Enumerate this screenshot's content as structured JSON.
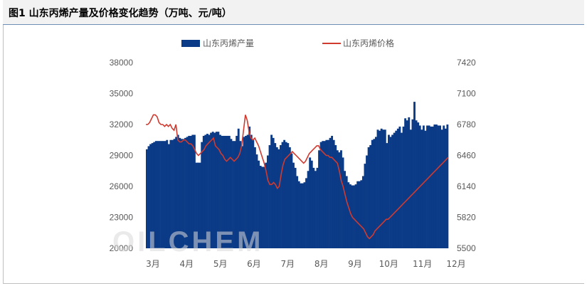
{
  "header": {
    "title": "图1  山东丙烯产量及价格变化趋势（万吨、元/吨）"
  },
  "watermark": "OILCHEM",
  "chart_data": {
    "type": "bar+line",
    "title": "",
    "left_axis": {
      "min": 20000,
      "max": 38000,
      "ticks": [
        20000,
        23000,
        26000,
        29000,
        32000,
        35000,
        38000
      ]
    },
    "right_axis": {
      "min": 5500,
      "max": 7420,
      "ticks": [
        5500,
        5820,
        6140,
        6460,
        6780,
        7100,
        7420
      ]
    },
    "x_ticks": [
      "3月",
      "4月",
      "5月",
      "6月",
      "7月",
      "8月",
      "9月",
      "10月",
      "11月",
      "12月"
    ],
    "grid": false,
    "legend_position": "top",
    "colors": {
      "bar": "#0b3a86",
      "line": "#d03a2f"
    },
    "series": [
      {
        "name": "山东丙烯产量",
        "kind": "bar",
        "axis": "left",
        "values": [
          29600,
          29900,
          30100,
          30200,
          30300,
          30400,
          30400,
          30400,
          30400,
          30400,
          30400,
          30500,
          30100,
          30500,
          30500,
          30600,
          30800,
          31000,
          30700,
          30600,
          30600,
          30700,
          30800,
          30900,
          30900,
          31000,
          31000,
          28300,
          28300,
          28300,
          30300,
          30900,
          31000,
          31100,
          31000,
          31200,
          31300,
          31200,
          31300,
          31300,
          31000,
          30900,
          30900,
          30900,
          30900,
          30900,
          30600,
          30400,
          30400,
          30900,
          31600,
          30400,
          29900,
          30800,
          30900,
          31000,
          31800,
          31000,
          30500,
          29800,
          29100,
          28500,
          28000,
          27900,
          27900,
          28300,
          29000,
          30000,
          31000,
          30700,
          30200,
          29800,
          29600,
          30000,
          30300,
          30500,
          30300,
          30200,
          29800,
          29200,
          28300,
          27800,
          27000,
          26500,
          26300,
          26300,
          26400,
          26800,
          27500,
          28800,
          28500,
          27800,
          27500,
          27800,
          29500,
          30300,
          30400,
          30400,
          30500,
          30500,
          30700,
          30900,
          30500,
          30000,
          29500,
          29300,
          29500,
          28800,
          27500,
          27000,
          26400,
          26200,
          26100,
          26100,
          26200,
          26500,
          26500,
          26600,
          27000,
          28200,
          29000,
          29800,
          30000,
          30500,
          30600,
          30800,
          31500,
          31400,
          31600,
          31500,
          31500,
          30200,
          31000,
          30800,
          31000,
          31200,
          31400,
          31600,
          31800,
          31200,
          31800,
          32600,
          32400,
          32700,
          31500,
          32500,
          34200,
          32400,
          32200,
          31900,
          31500,
          31900,
          31400,
          31900,
          31900,
          31800,
          31800,
          32000,
          32000,
          31900,
          31900,
          31500,
          31900,
          31600,
          32000
        ]
      },
      {
        "name": "山东丙烯价格",
        "kind": "line",
        "axis": "right",
        "values": [
          6780,
          6780,
          6800,
          6840,
          6880,
          6880,
          6860,
          6800,
          6780,
          6780,
          6760,
          6780,
          6760,
          6780,
          6740,
          6720,
          6780,
          6620,
          6600,
          6600,
          6620,
          6620,
          6600,
          6580,
          6580,
          6560,
          6520,
          6480,
          6460,
          6480,
          6500,
          6520,
          6560,
          6580,
          6600,
          6620,
          6640,
          6560,
          6540,
          6520,
          6480,
          6460,
          6420,
          6400,
          6420,
          6440,
          6420,
          6400,
          6420,
          6440,
          6480,
          6560,
          6720,
          6880,
          6820,
          6700,
          6640,
          6620,
          6640,
          6600,
          6560,
          6500,
          6440,
          6380,
          6300,
          6200,
          6160,
          6160,
          6180,
          6160,
          6120,
          6140,
          6260,
          6360,
          6420,
          6440,
          6460,
          6480,
          6500,
          6480,
          6460,
          6440,
          6420,
          6400,
          6380,
          6400,
          6440,
          6480,
          6500,
          6520,
          6540,
          6560,
          6560,
          6520,
          6500,
          6480,
          6460,
          6460,
          6440,
          6440,
          6420,
          6400,
          6380,
          6300,
          6200,
          6140,
          6060,
          5980,
          5920,
          5860,
          5820,
          5800,
          5780,
          5760,
          5740,
          5720,
          5700,
          5660,
          5620,
          5600,
          5620,
          5640,
          5680,
          5700,
          5720,
          5740,
          5760,
          5780,
          5800,
          5800,
          5820,
          5840,
          5860,
          5880,
          5900,
          5920,
          5940,
          5960,
          5980,
          6000,
          6020,
          6040,
          6060,
          6080,
          6100,
          6120,
          6140,
          6160,
          6180,
          6200,
          6220,
          6240,
          6260,
          6280,
          6300,
          6320,
          6340,
          6360,
          6380,
          6400,
          6420,
          6440
        ]
      }
    ]
  }
}
